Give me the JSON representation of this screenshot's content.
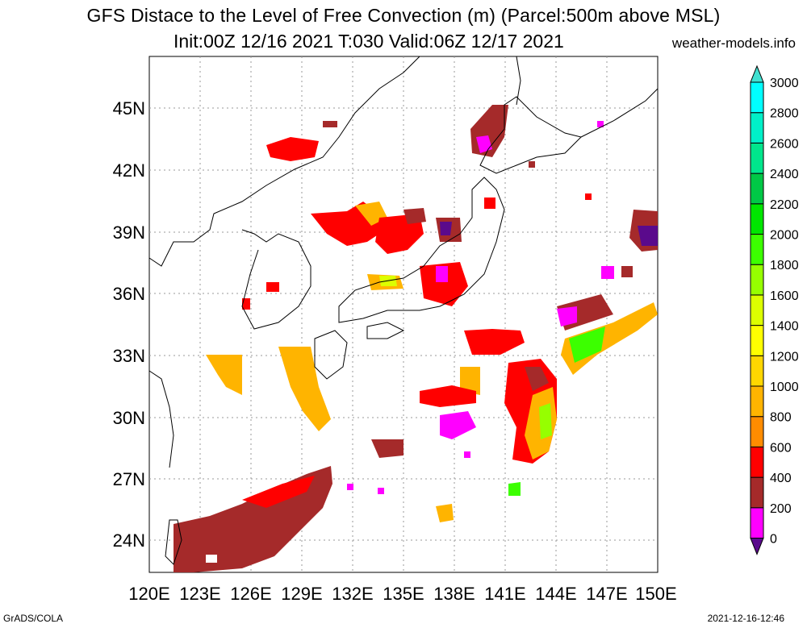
{
  "header": {
    "title": "GFS Distace to the Level of Free Convection (m) (Parcel:500m above MSL)",
    "subtitle": "Init:00Z 12/16 2021 T:030 Valid:06Z 12/17 2021",
    "site": "weather-models.info"
  },
  "footer": {
    "left": "GrADS/COLA",
    "right": "2021-12-16-12:46"
  },
  "map": {
    "lon_labels": [
      "120E",
      "123E",
      "126E",
      "129E",
      "132E",
      "135E",
      "138E",
      "141E",
      "144E",
      "147E",
      "150E"
    ],
    "lat_labels": [
      "24N",
      "27N",
      "30N",
      "33N",
      "36N",
      "39N",
      "42N",
      "45N"
    ],
    "extent": {
      "lon_min": 120,
      "lon_max": 150,
      "lat_min": 22.5,
      "lat_max": 47.5
    }
  },
  "colorbar": {
    "labels": [
      "0",
      "200",
      "400",
      "600",
      "800",
      "1000",
      "1200",
      "1400",
      "1600",
      "1800",
      "2000",
      "2200",
      "2400",
      "2600",
      "2800",
      "3000"
    ],
    "colors": [
      "#5a0a8c",
      "#ff00ff",
      "#a52a2a",
      "#ff0000",
      "#ff8c00",
      "#ffb400",
      "#ffd700",
      "#ffff00",
      "#dcff00",
      "#96ff00",
      "#3cff00",
      "#00e600",
      "#00c846",
      "#00e68c",
      "#00f0c8",
      "#00ffff",
      "#40e0d0"
    ]
  }
}
